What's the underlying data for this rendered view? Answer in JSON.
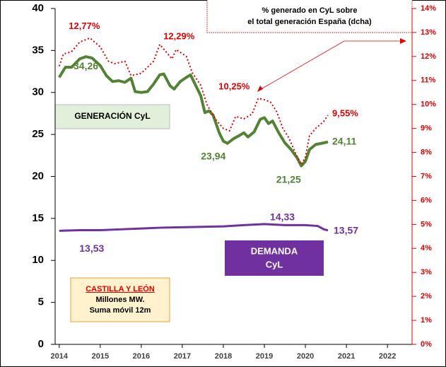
{
  "chart_data": {
    "type": "line",
    "annotations": [
      "% generado en CyL sobre",
      "el total generación España (dcha)",
      "GENERACIÓN CyL",
      "DEMANDA",
      "CyL",
      "CASTILLA Y LEÓN",
      "Millones MW.",
      "Suma móvil 12m"
    ],
    "xlim": [
      2013.9,
      2022.6
    ],
    "xticks": [
      2014,
      2015,
      2016,
      2017,
      2018,
      2019,
      2020,
      2021,
      2022
    ],
    "ylim": [
      0,
      40
    ],
    "yticks": [
      0,
      5,
      10,
      15,
      20,
      25,
      30,
      35,
      40
    ],
    "y2lim": [
      0,
      14
    ],
    "y2ticks": [
      {
        "value": 0,
        "label": "0%"
      },
      {
        "value": 1,
        "label": "1%"
      },
      {
        "value": 2,
        "label": "2%"
      },
      {
        "value": 3,
        "label": "3%"
      },
      {
        "value": 4,
        "label": "4%"
      },
      {
        "value": 5,
        "label": "5%"
      },
      {
        "value": 6,
        "label": "6%"
      },
      {
        "value": 7,
        "label": "7%"
      },
      {
        "value": 8,
        "label": "8%"
      },
      {
        "value": 9,
        "label": "9%"
      },
      {
        "value": 10,
        "label": "10%"
      },
      {
        "value": 11,
        "label": "11%"
      },
      {
        "value": 12,
        "label": "12%"
      },
      {
        "value": 13,
        "label": "13%"
      },
      {
        "value": 14,
        "label": "14%"
      }
    ],
    "series": [
      {
        "color": "#548235",
        "x": [
          2014.0,
          2014.15,
          2014.3,
          2014.5,
          2014.65,
          2014.8,
          2015.0,
          2015.15,
          2015.3,
          2015.45,
          2015.6,
          2015.75,
          2015.85,
          2016.0,
          2016.15,
          2016.3,
          2016.45,
          2016.55,
          2016.7,
          2016.8,
          2016.95,
          2017.1,
          2017.2,
          2017.35,
          2017.45,
          2017.55,
          2017.65,
          2017.75,
          2017.9,
          2018.0,
          2018.1,
          2018.25,
          2018.4,
          2018.5,
          2018.6,
          2018.75,
          2018.9,
          2019.0,
          2019.1,
          2019.2,
          2019.35,
          2019.5,
          2019.65,
          2019.8,
          2019.9,
          2020.0,
          2020.1,
          2020.25,
          2020.45,
          2020.55
        ],
        "values": [
          31.8,
          33.0,
          33.0,
          34.0,
          34.26,
          34.1,
          33.2,
          32.0,
          31.3,
          31.4,
          31.2,
          31.7,
          30.1,
          30.0,
          30.1,
          31.0,
          32.1,
          32.2,
          30.8,
          30.4,
          31.3,
          31.8,
          32.1,
          30.6,
          29.6,
          27.6,
          27.8,
          27.3,
          25.2,
          24.2,
          23.94,
          24.5,
          24.9,
          25.2,
          24.7,
          25.3,
          26.8,
          27.0,
          26.3,
          26.6,
          25.2,
          24.0,
          23.2,
          22.2,
          21.25,
          21.8,
          23.2,
          23.8,
          24.0,
          24.11
        ],
        "value_labels": [
          null,
          null,
          null,
          null,
          "34,26",
          null,
          null,
          null,
          null,
          null,
          null,
          null,
          null,
          null,
          null,
          null,
          null,
          null,
          null,
          null,
          null,
          null,
          null,
          null,
          null,
          null,
          null,
          null,
          null,
          null,
          "23,94",
          null,
          null,
          null,
          null,
          null,
          null,
          null,
          null,
          null,
          null,
          null,
          null,
          null,
          "21,25",
          null,
          null,
          null,
          null,
          "24,11"
        ]
      },
      {
        "color": "#7030a0",
        "x": [
          2014.0,
          2014.5,
          2015.0,
          2015.5,
          2016.0,
          2016.5,
          2017.0,
          2017.5,
          2018.0,
          2018.5,
          2019.0,
          2019.5,
          2020.0,
          2020.3,
          2020.45,
          2020.55
        ],
        "values": [
          13.53,
          13.6,
          13.6,
          13.7,
          13.8,
          13.9,
          13.95,
          14.0,
          14.05,
          14.2,
          14.33,
          14.2,
          14.2,
          14.1,
          13.7,
          13.57
        ],
        "value_labels": [
          "13,53",
          null,
          null,
          null,
          null,
          null,
          null,
          null,
          null,
          null,
          "14,33",
          null,
          null,
          null,
          null,
          "13,57"
        ]
      },
      {
        "color": "#e00000",
        "axis": "y2",
        "x": [
          2014.0,
          2014.1,
          2014.3,
          2014.5,
          2014.75,
          2015.0,
          2015.2,
          2015.35,
          2015.6,
          2015.75,
          2016.0,
          2016.3,
          2016.45,
          2016.6,
          2016.75,
          2016.85,
          2017.1,
          2017.25,
          2017.45,
          2017.6,
          2017.8,
          2018.0,
          2018.15,
          2018.3,
          2018.5,
          2018.7,
          2018.85,
          2019.0,
          2019.15,
          2019.3,
          2019.45,
          2019.6,
          2019.75,
          2019.9,
          2020.0,
          2020.1,
          2020.25,
          2020.45,
          2020.55
        ],
        "values": [
          11.6,
          12.1,
          12.2,
          12.6,
          12.77,
          12.4,
          11.8,
          11.7,
          11.8,
          11.2,
          11.3,
          11.8,
          12.5,
          12.2,
          11.9,
          12.29,
          12.0,
          11.3,
          10.8,
          10.0,
          9.4,
          9.0,
          8.9,
          9.5,
          9.4,
          9.6,
          10.25,
          10.2,
          10.1,
          9.7,
          9.0,
          8.6,
          8.0,
          7.5,
          7.8,
          8.7,
          9.0,
          9.3,
          9.55
        ],
        "value_labels": [
          null,
          null,
          null,
          null,
          "12,77%",
          null,
          null,
          null,
          null,
          null,
          null,
          null,
          null,
          null,
          null,
          "12,29%",
          null,
          null,
          null,
          null,
          null,
          null,
          null,
          null,
          null,
          null,
          "10,25%",
          null,
          null,
          null,
          null,
          null,
          null,
          null,
          null,
          null,
          null,
          null,
          "9,55%"
        ]
      }
    ]
  }
}
